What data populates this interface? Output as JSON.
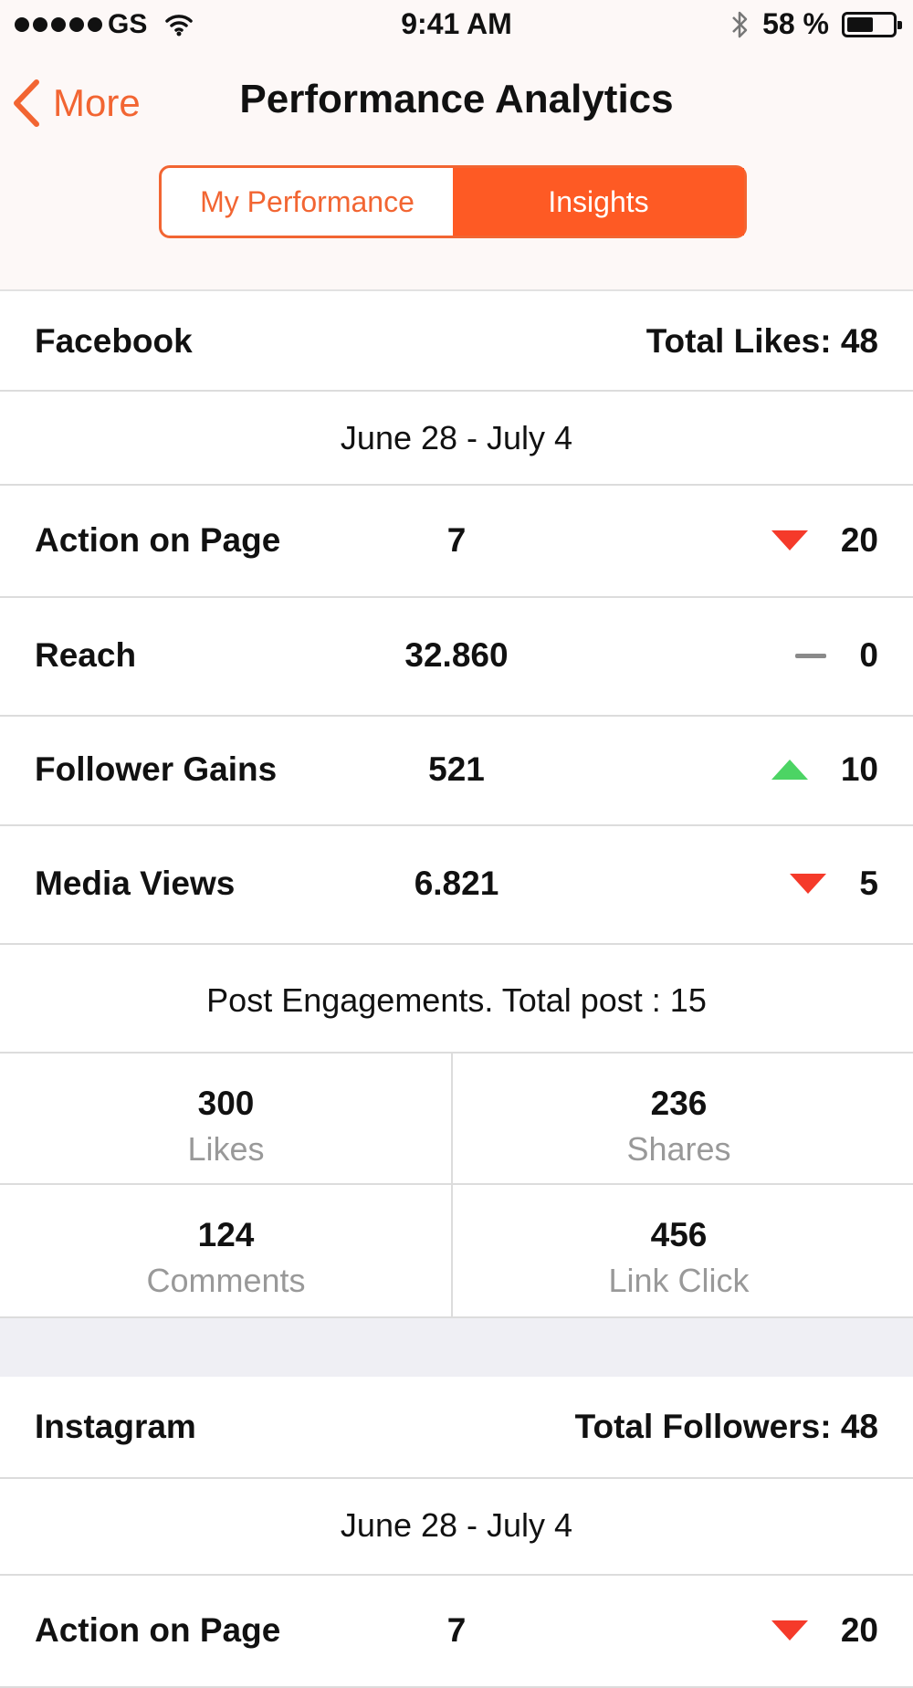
{
  "status_bar": {
    "carrier": "GS",
    "time": "9:41 AM",
    "battery": "58 %",
    "icons": [
      "signal-dots-icon",
      "wifi-icon",
      "bluetooth-icon",
      "battery-icon"
    ]
  },
  "nav": {
    "back_label": "More",
    "title": "Performance Analytics"
  },
  "segmented": {
    "tabs": [
      {
        "label": "My Performance",
        "active": false
      },
      {
        "label": "Insights",
        "active": true
      }
    ]
  },
  "facebook": {
    "name": "Facebook",
    "total": "Total Likes: 48",
    "date_range": "June 28 - July 4",
    "metrics": [
      {
        "label": "Action on Page",
        "value": "7",
        "trend": "down",
        "delta": "20"
      },
      {
        "label": "Reach",
        "value": "32.860",
        "trend": "flat",
        "delta": "0"
      },
      {
        "label": "Follower Gains",
        "value": "521",
        "trend": "up",
        "delta": "10"
      },
      {
        "label": "Media Views",
        "value": "6.821",
        "trend": "down",
        "delta": "5"
      }
    ],
    "engagement_title": "Post Engagements. Total post : 15",
    "engagement": [
      {
        "value": "300",
        "label": "Likes"
      },
      {
        "value": "236",
        "label": "Shares"
      },
      {
        "value": "124",
        "label": "Comments"
      },
      {
        "value": "456",
        "label": "Link Click"
      }
    ]
  },
  "instagram": {
    "name": "Instagram",
    "total": "Total Followers: 48",
    "date_range": "June 28 - July 4",
    "metrics": [
      {
        "label": "Action on Page",
        "value": "7",
        "trend": "down",
        "delta": "20"
      }
    ]
  },
  "colors": {
    "accent": "#fe5a24",
    "down": "#f53a2a",
    "up": "#4cd464",
    "flat": "#8a8a8a"
  }
}
